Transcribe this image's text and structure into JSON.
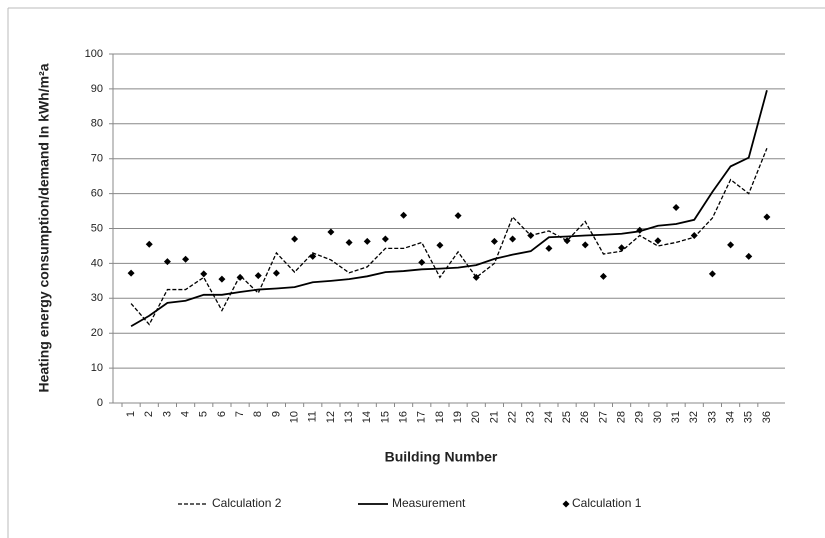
{
  "chart_data": {
    "type": "line",
    "y_label": "Heating energy consumption/demand In kWh/m²a",
    "x_label": "Building Number",
    "categories": [
      "1",
      "2",
      "3",
      "4",
      "5",
      "6",
      "7",
      "8",
      "9",
      "10",
      "11",
      "12",
      "13",
      "14",
      "15",
      "16",
      "17",
      "18",
      "19",
      "20",
      "21",
      "22",
      "23",
      "24",
      "25",
      "26",
      "27",
      "28",
      "29",
      "30",
      "31",
      "32",
      "33",
      "34",
      "35",
      "36"
    ],
    "series": [
      {
        "name": "Calculation 2",
        "color": "#000000",
        "style": "dashed",
        "values": [
          28.5,
          22.5,
          32.5,
          32.5,
          36,
          26.5,
          36.5,
          31.5,
          43,
          37.5,
          43,
          41,
          37.3,
          39,
          44.3,
          44.3,
          46,
          36,
          43.3,
          36,
          40,
          53.3,
          48,
          49.3,
          46.5,
          52,
          42.7,
          43.5,
          48,
          45,
          46,
          47.5,
          53,
          64,
          60,
          73
        ]
      },
      {
        "name": "Measurement",
        "color": "#000000",
        "style": "solid",
        "values": [
          22,
          25,
          28.7,
          29.3,
          31,
          31,
          31.8,
          32.5,
          32.8,
          33.2,
          34.6,
          35,
          35.5,
          36.3,
          37.5,
          37.8,
          38.3,
          38.5,
          38.8,
          39.5,
          41.3,
          42.5,
          43.5,
          47.5,
          47.7,
          48,
          48.2,
          48.5,
          49.2,
          50.8,
          51.3,
          52.5,
          60.5,
          67.8,
          70.3,
          89.6
        ]
      },
      {
        "name": "Calculation 1",
        "color": "#000000",
        "style": "markers",
        "values": [
          37.2,
          45.5,
          40.5,
          41.2,
          37,
          35.5,
          36,
          36.5,
          37.2,
          47,
          42,
          49,
          46,
          46.3,
          47,
          53.8,
          40.3,
          45.2,
          53.7,
          36,
          46.3,
          47,
          48,
          44.3,
          46.5,
          45.3,
          36.3,
          44.5,
          49.5,
          46.5,
          56,
          48,
          37,
          45.3,
          42,
          53.3
        ]
      }
    ],
    "ylim": [
      0,
      100
    ],
    "yticks": [
      0,
      10,
      20,
      30,
      40,
      50,
      60,
      70,
      80,
      90,
      100
    ],
    "grid": true,
    "legend": "bottom"
  }
}
